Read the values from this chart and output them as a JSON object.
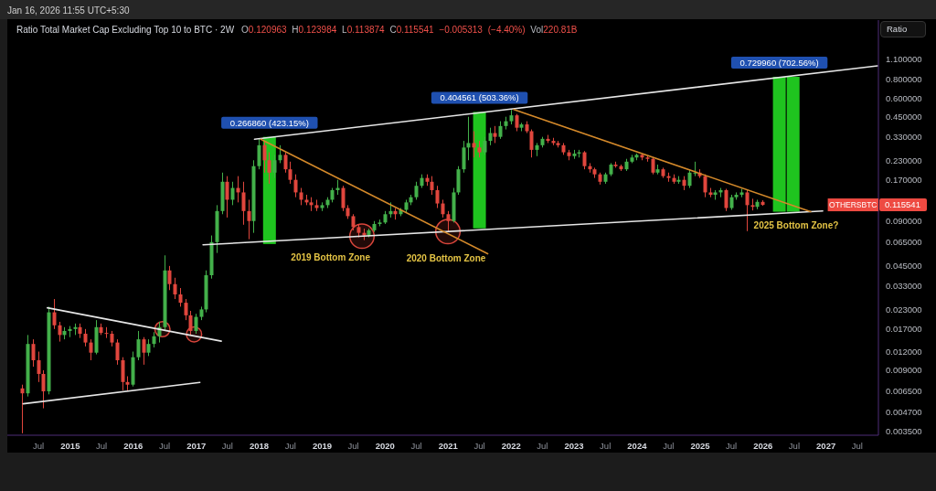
{
  "chart_data": {
    "type": "candlestick",
    "title": "Ratio Total Market Cap Excluding Top 10 to BTC · 2W",
    "subtitle": "O0.120963 H0.123984 L0.113874 C0.115541 −0.005313 (−4.40%) Vol220.81B",
    "ylabel": "Ratio",
    "annotations": [
      "Jan 16, 2026 11:55 UTC+5:30",
      "2019 Bottom Zone",
      "2020 Bottom Zone",
      "2025 Bottom Zone?",
      "OTHERSBTC",
      "0.115541"
    ],
    "x": [
      "2014-04",
      "2014-05",
      "2014-06",
      "2014-07",
      "2014-08",
      "2014-09",
      "2014-10",
      "2014-11",
      "2014-12",
      "2015-01",
      "2015-02",
      "2015-03",
      "2015-04",
      "2015-05",
      "2015-06",
      "2015-07",
      "2015-08",
      "2015-09",
      "2015-10",
      "2015-11",
      "2015-12",
      "2016-01",
      "2016-02",
      "2016-03",
      "2016-04",
      "2016-05",
      "2016-06",
      "2016-07",
      "2016-08",
      "2016-09",
      "2016-10",
      "2016-11",
      "2016-12",
      "2017-01",
      "2017-02",
      "2017-03",
      "2017-04",
      "2017-05",
      "2017-06",
      "2017-07",
      "2017-08",
      "2017-09",
      "2017-10",
      "2017-11",
      "2017-12",
      "2018-01",
      "2018-02",
      "2018-03",
      "2018-04",
      "2018-05",
      "2018-06",
      "2018-07",
      "2018-08",
      "2018-09",
      "2018-10",
      "2018-11",
      "2018-12",
      "2019-01",
      "2019-02",
      "2019-03",
      "2019-04",
      "2019-05",
      "2019-06",
      "2019-07",
      "2019-08",
      "2019-09",
      "2019-10",
      "2019-11",
      "2019-12",
      "2020-01",
      "2020-02",
      "2020-03",
      "2020-04",
      "2020-05",
      "2020-06",
      "2020-07",
      "2020-08",
      "2020-09",
      "2020-10",
      "2020-11",
      "2020-12",
      "2021-01",
      "2021-02",
      "2021-03",
      "2021-04",
      "2021-05",
      "2021-06",
      "2021-07",
      "2021-08",
      "2021-09",
      "2021-10",
      "2021-11",
      "2021-12",
      "2022-01",
      "2022-02",
      "2022-03",
      "2022-04",
      "2022-05",
      "2022-06",
      "2022-07",
      "2022-08",
      "2022-09",
      "2022-10",
      "2022-11",
      "2022-12",
      "2023-01",
      "2023-02",
      "2023-03",
      "2023-04",
      "2023-05",
      "2023-06",
      "2023-07",
      "2023-08",
      "2023-09",
      "2023-10",
      "2023-11",
      "2023-12",
      "2024-01",
      "2024-02",
      "2024-03",
      "2024-04",
      "2024-05",
      "2024-06",
      "2024-07",
      "2024-08",
      "2024-09",
      "2024-10",
      "2024-11",
      "2024-12",
      "2025-01",
      "2025-02",
      "2025-03",
      "2025-04",
      "2025-05",
      "2025-06",
      "2025-07",
      "2025-08",
      "2025-09",
      "2025-10",
      "2025-11",
      "2025-12",
      "2026-01"
    ],
    "ohlc": [
      [
        0.0068,
        0.0072,
        0.0034,
        0.0063
      ],
      [
        0.0063,
        0.0155,
        0.006,
        0.0135
      ],
      [
        0.0135,
        0.0145,
        0.0095,
        0.0105
      ],
      [
        0.0105,
        0.012,
        0.0075,
        0.0085
      ],
      [
        0.0085,
        0.009,
        0.005,
        0.0065
      ],
      [
        0.0065,
        0.024,
        0.0062,
        0.022
      ],
      [
        0.022,
        0.027,
        0.017,
        0.018
      ],
      [
        0.018,
        0.019,
        0.014,
        0.0155
      ],
      [
        0.0155,
        0.0175,
        0.0145,
        0.0165
      ],
      [
        0.0165,
        0.0178,
        0.015,
        0.017
      ],
      [
        0.017,
        0.0185,
        0.0155,
        0.0175
      ],
      [
        0.0175,
        0.0185,
        0.0148,
        0.0158
      ],
      [
        0.0158,
        0.017,
        0.013,
        0.0138
      ],
      [
        0.0138,
        0.0145,
        0.0105,
        0.0118
      ],
      [
        0.0118,
        0.0195,
        0.0115,
        0.0175
      ],
      [
        0.0175,
        0.0185,
        0.0155,
        0.016
      ],
      [
        0.016,
        0.0175,
        0.0148,
        0.0158
      ],
      [
        0.0158,
        0.0165,
        0.013,
        0.0138
      ],
      [
        0.0138,
        0.0145,
        0.0098,
        0.0105
      ],
      [
        0.0105,
        0.011,
        0.0066,
        0.0075
      ],
      [
        0.0075,
        0.0082,
        0.0066,
        0.0072
      ],
      [
        0.0072,
        0.012,
        0.007,
        0.011
      ],
      [
        0.011,
        0.0165,
        0.0105,
        0.0145
      ],
      [
        0.0145,
        0.015,
        0.0098,
        0.0118
      ],
      [
        0.0118,
        0.0145,
        0.0112,
        0.0135
      ],
      [
        0.0135,
        0.0162,
        0.0128,
        0.0152
      ],
      [
        0.0152,
        0.019,
        0.0138,
        0.0175
      ],
      [
        0.0175,
        0.053,
        0.0165,
        0.042
      ],
      [
        0.042,
        0.045,
        0.031,
        0.034
      ],
      [
        0.034,
        0.0375,
        0.027,
        0.029
      ],
      [
        0.029,
        0.032,
        0.024,
        0.0255
      ],
      [
        0.0255,
        0.027,
        0.0195,
        0.021
      ],
      [
        0.021,
        0.0225,
        0.0155,
        0.0165
      ],
      [
        0.0165,
        0.0215,
        0.0158,
        0.0205
      ],
      [
        0.0205,
        0.024,
        0.0195,
        0.023
      ],
      [
        0.023,
        0.042,
        0.022,
        0.039
      ],
      [
        0.039,
        0.072,
        0.037,
        0.065
      ],
      [
        0.065,
        0.115,
        0.055,
        0.105
      ],
      [
        0.105,
        0.19,
        0.1,
        0.165
      ],
      [
        0.165,
        0.18,
        0.095,
        0.125
      ],
      [
        0.125,
        0.165,
        0.115,
        0.15
      ],
      [
        0.15,
        0.18,
        0.12,
        0.14
      ],
      [
        0.14,
        0.165,
        0.085,
        0.105
      ],
      [
        0.105,
        0.125,
        0.068,
        0.09
      ],
      [
        0.09,
        0.23,
        0.075,
        0.21
      ],
      [
        0.21,
        0.32,
        0.2,
        0.29
      ],
      [
        0.29,
        0.31,
        0.19,
        0.23
      ],
      [
        0.23,
        0.26,
        0.16,
        0.19
      ],
      [
        0.19,
        0.25,
        0.175,
        0.23
      ],
      [
        0.23,
        0.29,
        0.22,
        0.25
      ],
      [
        0.25,
        0.26,
        0.19,
        0.2
      ],
      [
        0.2,
        0.225,
        0.16,
        0.17
      ],
      [
        0.17,
        0.185,
        0.13,
        0.14
      ],
      [
        0.14,
        0.15,
        0.115,
        0.125
      ],
      [
        0.125,
        0.135,
        0.115,
        0.12
      ],
      [
        0.12,
        0.13,
        0.105,
        0.115
      ],
      [
        0.115,
        0.125,
        0.105,
        0.11
      ],
      [
        0.11,
        0.12,
        0.105,
        0.115
      ],
      [
        0.115,
        0.13,
        0.11,
        0.125
      ],
      [
        0.125,
        0.15,
        0.12,
        0.145
      ],
      [
        0.145,
        0.17,
        0.135,
        0.15
      ],
      [
        0.15,
        0.155,
        0.105,
        0.11
      ],
      [
        0.11,
        0.115,
        0.093,
        0.097
      ],
      [
        0.097,
        0.1,
        0.078,
        0.082
      ],
      [
        0.082,
        0.085,
        0.07,
        0.075
      ],
      [
        0.075,
        0.08,
        0.067,
        0.072
      ],
      [
        0.072,
        0.08,
        0.07,
        0.078
      ],
      [
        0.078,
        0.09,
        0.076,
        0.086
      ],
      [
        0.086,
        0.092,
        0.083,
        0.088
      ],
      [
        0.088,
        0.105,
        0.086,
        0.1
      ],
      [
        0.1,
        0.12,
        0.095,
        0.105
      ],
      [
        0.105,
        0.11,
        0.092,
        0.1
      ],
      [
        0.1,
        0.11,
        0.097,
        0.107
      ],
      [
        0.107,
        0.125,
        0.103,
        0.12
      ],
      [
        0.12,
        0.135,
        0.115,
        0.13
      ],
      [
        0.13,
        0.165,
        0.125,
        0.155
      ],
      [
        0.155,
        0.185,
        0.15,
        0.175
      ],
      [
        0.175,
        0.185,
        0.155,
        0.165
      ],
      [
        0.165,
        0.18,
        0.135,
        0.145
      ],
      [
        0.145,
        0.155,
        0.11,
        0.118
      ],
      [
        0.118,
        0.125,
        0.095,
        0.1
      ],
      [
        0.1,
        0.105,
        0.076,
        0.09
      ],
      [
        0.09,
        0.15,
        0.088,
        0.14
      ],
      [
        0.14,
        0.21,
        0.135,
        0.2
      ],
      [
        0.2,
        0.31,
        0.19,
        0.28
      ],
      [
        0.28,
        0.45,
        0.23,
        0.3
      ],
      [
        0.3,
        0.36,
        0.24,
        0.28
      ],
      [
        0.28,
        0.31,
        0.24,
        0.26
      ],
      [
        0.26,
        0.33,
        0.25,
        0.31
      ],
      [
        0.31,
        0.38,
        0.29,
        0.35
      ],
      [
        0.35,
        0.39,
        0.3,
        0.33
      ],
      [
        0.33,
        0.42,
        0.32,
        0.39
      ],
      [
        0.39,
        0.45,
        0.37,
        0.42
      ],
      [
        0.42,
        0.5,
        0.4,
        0.46
      ],
      [
        0.46,
        0.47,
        0.36,
        0.38
      ],
      [
        0.38,
        0.41,
        0.36,
        0.4
      ],
      [
        0.4,
        0.42,
        0.35,
        0.36
      ],
      [
        0.36,
        0.37,
        0.24,
        0.27
      ],
      [
        0.27,
        0.3,
        0.245,
        0.29
      ],
      [
        0.29,
        0.33,
        0.28,
        0.32
      ],
      [
        0.32,
        0.34,
        0.3,
        0.31
      ],
      [
        0.31,
        0.325,
        0.29,
        0.3
      ],
      [
        0.3,
        0.31,
        0.28,
        0.29
      ],
      [
        0.29,
        0.3,
        0.25,
        0.26
      ],
      [
        0.26,
        0.27,
        0.23,
        0.245
      ],
      [
        0.245,
        0.27,
        0.235,
        0.255
      ],
      [
        0.255,
        0.27,
        0.24,
        0.26
      ],
      [
        0.26,
        0.265,
        0.2,
        0.21
      ],
      [
        0.21,
        0.22,
        0.19,
        0.2
      ],
      [
        0.2,
        0.205,
        0.175,
        0.185
      ],
      [
        0.185,
        0.19,
        0.158,
        0.165
      ],
      [
        0.165,
        0.19,
        0.16,
        0.185
      ],
      [
        0.185,
        0.22,
        0.18,
        0.215
      ],
      [
        0.215,
        0.225,
        0.205,
        0.21
      ],
      [
        0.21,
        0.215,
        0.195,
        0.2
      ],
      [
        0.2,
        0.235,
        0.195,
        0.225
      ],
      [
        0.225,
        0.25,
        0.22,
        0.24
      ],
      [
        0.24,
        0.255,
        0.23,
        0.25
      ],
      [
        0.25,
        0.252,
        0.23,
        0.24
      ],
      [
        0.24,
        0.245,
        0.225,
        0.235
      ],
      [
        0.235,
        0.24,
        0.185,
        0.19
      ],
      [
        0.19,
        0.215,
        0.185,
        0.2
      ],
      [
        0.2,
        0.205,
        0.175,
        0.18
      ],
      [
        0.18,
        0.19,
        0.165,
        0.175
      ],
      [
        0.175,
        0.185,
        0.16,
        0.165
      ],
      [
        0.165,
        0.18,
        0.16,
        0.17
      ],
      [
        0.17,
        0.18,
        0.145,
        0.155
      ],
      [
        0.155,
        0.2,
        0.15,
        0.19
      ],
      [
        0.19,
        0.225,
        0.18,
        0.19
      ],
      [
        0.19,
        0.2,
        0.175,
        0.18
      ],
      [
        0.18,
        0.185,
        0.13,
        0.14
      ],
      [
        0.14,
        0.15,
        0.13,
        0.135
      ],
      [
        0.135,
        0.145,
        0.125,
        0.14
      ],
      [
        0.14,
        0.15,
        0.13,
        0.145
      ],
      [
        0.145,
        0.148,
        0.105,
        0.11
      ],
      [
        0.11,
        0.135,
        0.107,
        0.13
      ],
      [
        0.13,
        0.14,
        0.125,
        0.135
      ],
      [
        0.135,
        0.148,
        0.13,
        0.14
      ],
      [
        0.14,
        0.145,
        0.077,
        0.115
      ],
      [
        0.115,
        0.127,
        0.106,
        0.112
      ],
      [
        0.112,
        0.125,
        0.108,
        0.120963
      ],
      [
        0.120963,
        0.123984,
        0.113874,
        0.115541
      ]
    ],
    "series": [
      {
        "type": "bar",
        "x": [
          "2018-02-27",
          "2021-06-29",
          "2026-04-03",
          "2026-06-22"
        ],
        "base": [
          0.0631,
          0.0804,
          0.1039,
          0.1039
        ],
        "values": [
          0.26686,
          0.404561,
          0.72996,
          0.72996
        ],
        "value_labels": [
          "0.266860 (423.15%)",
          "0.404561 (503.36%)",
          "0.729960 (702.56%)",
          null
        ],
        "color": "#1fc41f"
      },
      {
        "type": "line",
        "x": [
          "2017-02-09",
          "2026-12-13"
        ],
        "values": [
          0.0623,
          0.105
        ],
        "color": "#e6e6e6"
      },
      {
        "type": "line",
        "x": [
          "2017-12-05",
          "2027-10-27"
        ],
        "values": [
          0.318,
          0.987
        ],
        "color": "#e6e6e6"
      },
      {
        "type": "line",
        "x": [
          "2014-04-03",
          "2017-01-22"
        ],
        "values": [
          0.00536,
          0.00746
        ],
        "color": "#e6e6e6"
      },
      {
        "type": "line",
        "x": [
          "2014-08-21",
          "2017-05-26"
        ],
        "values": [
          0.0236,
          0.0141
        ],
        "color": "#e6e6e6"
      },
      {
        "type": "line",
        "x": [
          "2018-01-10",
          "2021-08-18"
        ],
        "values": [
          0.318,
          0.0543
        ],
        "color": "#d4892a"
      },
      {
        "type": "line",
        "x": [
          "2022-01-16",
          "2026-10-04"
        ],
        "values": [
          0.504,
          0.104
        ],
        "color": "#d4892a"
      }
    ],
    "log": true,
    "xlim": [
      "2014-01-01",
      "2027-11-01"
    ],
    "ylim": [
      0.0033,
      2.0
    ],
    "xticks": [
      {
        "value": "2014-07",
        "label": "Jul"
      },
      {
        "value": "2015",
        "label": "2015"
      },
      {
        "value": "2015-07",
        "label": "Jul"
      },
      {
        "value": "2016",
        "label": "2016"
      },
      {
        "value": "2016-07",
        "label": "Jul"
      },
      {
        "value": "2017",
        "label": "2017"
      },
      {
        "value": "2017-07",
        "label": "Jul"
      },
      {
        "value": "2018",
        "label": "2018"
      },
      {
        "value": "2018-07",
        "label": "Jul"
      },
      {
        "value": "2019",
        "label": "2019"
      },
      {
        "value": "2019-07",
        "label": "Jul"
      },
      {
        "value": "2020",
        "label": "2020"
      },
      {
        "value": "2020-07",
        "label": "Jul"
      },
      {
        "value": "2021",
        "label": "2021"
      },
      {
        "value": "2021-07",
        "label": "Jul"
      },
      {
        "value": "2022",
        "label": "2022"
      },
      {
        "value": "2022-07",
        "label": "Jul"
      },
      {
        "value": "2023",
        "label": "2023"
      },
      {
        "value": "2023-07",
        "label": "Jul"
      },
      {
        "value": "2024",
        "label": "2024"
      },
      {
        "value": "2024-07",
        "label": "Jul"
      },
      {
        "value": "2025",
        "label": "2025"
      },
      {
        "value": "2025-07",
        "label": "Jul"
      },
      {
        "value": "2026",
        "label": "2026"
      },
      {
        "value": "2026-07",
        "label": "Jul"
      },
      {
        "value": "2027",
        "label": "2027"
      },
      {
        "value": "2027-07",
        "label": "Jul"
      }
    ],
    "yticks": [
      {
        "value": 1.1,
        "label": "1.100000"
      },
      {
        "value": 0.8,
        "label": "0.800000"
      },
      {
        "value": 0.6,
        "label": "0.600000"
      },
      {
        "value": 0.45,
        "label": "0.450000"
      },
      {
        "value": 0.33,
        "label": "0.330000"
      },
      {
        "value": 0.23,
        "label": "0.230000"
      },
      {
        "value": 0.17,
        "label": "0.170000"
      },
      {
        "value": 0.09,
        "label": "0.090000"
      },
      {
        "value": 0.065,
        "label": "0.065000"
      },
      {
        "value": 0.045,
        "label": "0.045000"
      },
      {
        "value": 0.033,
        "label": "0.033000"
      },
      {
        "value": 0.023,
        "label": "0.023000"
      },
      {
        "value": 0.017,
        "label": "0.017000"
      },
      {
        "value": 0.012,
        "label": "0.012000"
      },
      {
        "value": 0.009,
        "label": "0.009000"
      },
      {
        "value": 0.0065,
        "label": "0.006500"
      },
      {
        "value": 0.0047,
        "label": "0.004700"
      },
      {
        "value": 0.0035,
        "label": "0.003500"
      }
    ]
  }
}
